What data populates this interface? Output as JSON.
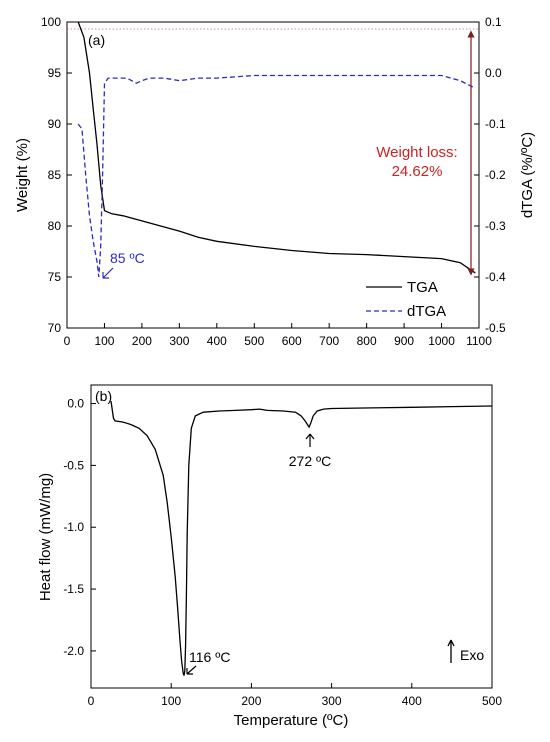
{
  "chart_data": [
    {
      "type": "line",
      "panel_label": "(a)",
      "xlabel": "",
      "ylabel": "Weight (%)",
      "y2label": "dTGA (%/ºC)",
      "xlim": [
        0,
        1100
      ],
      "ylim": [
        70,
        100
      ],
      "y2lim": [
        -0.5,
        0.1
      ],
      "xticks": [
        "0",
        "100",
        "200",
        "300",
        "400",
        "500",
        "600",
        "700",
        "800",
        "900",
        "1000",
        "1100"
      ],
      "yticks": [
        "70",
        "75",
        "80",
        "85",
        "90",
        "95",
        "100"
      ],
      "y2ticks": [
        "-0.5",
        "-0.4",
        "-0.3",
        "-0.2",
        "-0.1",
        "0.0",
        "0.1"
      ],
      "legend_position": "bottom-right",
      "series": [
        {
          "name": "TGA",
          "axis": "left",
          "color": "#000000",
          "dash": "solid",
          "x": [
            30,
            45,
            60,
            70,
            80,
            90,
            100,
            120,
            150,
            200,
            250,
            300,
            350,
            400,
            500,
            600,
            700,
            800,
            900,
            1000,
            1050,
            1090
          ],
          "y": [
            100,
            98.5,
            95,
            91.5,
            88,
            84,
            81.5,
            81.2,
            81.0,
            80.5,
            80.0,
            79.5,
            78.9,
            78.5,
            78.0,
            77.6,
            77.3,
            77.2,
            77.0,
            76.8,
            76.4,
            75.4
          ]
        },
        {
          "name": "dTGA",
          "axis": "right",
          "color": "#2b2bc8",
          "dash": "dashed",
          "x": [
            30,
            40,
            50,
            60,
            70,
            80,
            85,
            90,
            95,
            100,
            110,
            130,
            160,
            185,
            200,
            220,
            260,
            300,
            350,
            400,
            500,
            600,
            700,
            800,
            900,
            1000,
            1050,
            1090
          ],
          "y": [
            -0.1,
            -0.11,
            -0.2,
            -0.28,
            -0.33,
            -0.37,
            -0.4,
            -0.34,
            -0.2,
            -0.02,
            -0.01,
            -0.01,
            -0.01,
            -0.02,
            -0.015,
            -0.01,
            -0.01,
            -0.015,
            -0.01,
            -0.01,
            -0.005,
            -0.005,
            -0.005,
            -0.005,
            -0.005,
            -0.005,
            -0.015,
            -0.03
          ]
        }
      ],
      "annotations": [
        {
          "text": "85 ºC",
          "color": "#2b2bc8",
          "x": 85,
          "y2": -0.4
        },
        {
          "text_lines": [
            "Weight loss:",
            "24.62%"
          ],
          "color": "#cc2222",
          "x": 1075,
          "y_from": 75.4,
          "y_to": 100
        }
      ]
    },
    {
      "type": "line",
      "panel_label": "(b)",
      "xlabel": "Temperature (ºC)",
      "ylabel": "Heat flow (mW/mg)",
      "xlim": [
        0,
        500
      ],
      "ylim": [
        -2.3,
        0.15
      ],
      "xticks": [
        "0",
        "100",
        "200",
        "300",
        "400",
        "500"
      ],
      "yticks": [
        "-2.0",
        "-1.5",
        "-1.0",
        "-0.5",
        "0.0"
      ],
      "series": [
        {
          "name": "",
          "color": "#000000",
          "dash": "solid",
          "x": [
            25,
            28,
            30,
            40,
            50,
            60,
            70,
            80,
            90,
            95,
            100,
            105,
            108,
            111,
            113,
            115,
            116,
            117,
            118,
            119,
            120,
            122,
            125,
            130,
            140,
            160,
            180,
            200,
            210,
            220,
            240,
            255,
            262,
            267,
            270,
            272,
            274,
            277,
            282,
            290,
            300,
            350,
            400,
            450,
            500
          ],
          "y": [
            0.02,
            -0.12,
            -0.14,
            -0.15,
            -0.17,
            -0.2,
            -0.26,
            -0.37,
            -0.58,
            -0.8,
            -1.08,
            -1.4,
            -1.65,
            -1.92,
            -2.08,
            -2.18,
            -2.2,
            -2.16,
            -1.95,
            -1.55,
            -1.05,
            -0.5,
            -0.2,
            -0.1,
            -0.07,
            -0.06,
            -0.055,
            -0.05,
            -0.045,
            -0.055,
            -0.06,
            -0.07,
            -0.1,
            -0.14,
            -0.17,
            -0.19,
            -0.16,
            -0.1,
            -0.06,
            -0.045,
            -0.04,
            -0.035,
            -0.03,
            -0.025,
            -0.02
          ]
        }
      ],
      "annotations": [
        {
          "text": "272 ºC",
          "x": 272,
          "y": -0.19
        },
        {
          "text": "116 ºC",
          "x": 116,
          "y": -2.2
        },
        {
          "text": "Exo",
          "position": "bottom-right"
        }
      ]
    }
  ]
}
